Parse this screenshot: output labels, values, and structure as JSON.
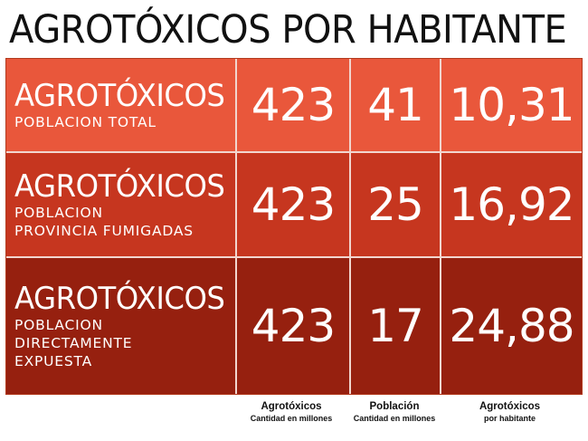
{
  "title": "AGROTÓXICOS POR HABITANTE",
  "rows": [
    {
      "label": "AGROTÓXICOS",
      "sublabel": "POBLACION TOTAL",
      "agrotoxicos": "423",
      "poblacion": "41",
      "por_habitante": "10,31"
    },
    {
      "label": "AGROTÓXICOS",
      "sublabel": "POBLACION\nPROVINCIA FUMIGADAS",
      "agrotoxicos": "423",
      "poblacion": "25",
      "por_habitante": "16,92"
    },
    {
      "label": "AGROTÓXICOS",
      "sublabel": "POBLACION\nDIRECTAMENTE\nEXPUESTA",
      "agrotoxicos": "423",
      "poblacion": "17",
      "por_habitante": "24,88"
    }
  ],
  "footer": [
    {
      "heading": "Agrotóxicos",
      "sub": "Cantidad en millones"
    },
    {
      "heading": "Población",
      "sub": "Cantidad en millones"
    },
    {
      "heading": "Agrotóxicos",
      "sub": "por habitante"
    }
  ],
  "colors": {
    "row1": "#e9573b",
    "row2": "#c6361f",
    "row3": "#96200f",
    "divider": "#f2d6cf"
  }
}
